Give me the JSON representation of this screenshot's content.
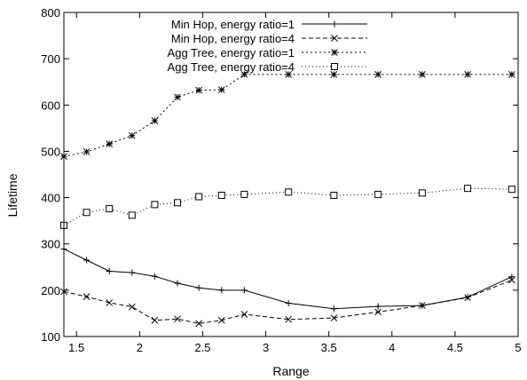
{
  "chart_data": {
    "type": "line",
    "title": "",
    "xlabel": "Range",
    "ylabel": "Lifetime",
    "xlim": [
      1.4,
      5.0
    ],
    "ylim": [
      100,
      800
    ],
    "xticks": [
      1.5,
      2,
      2.5,
      3,
      3.5,
      4,
      4.5,
      5
    ],
    "xtick_labels": [
      "1.5",
      "2",
      "2.5",
      "3",
      "3.5",
      "4",
      "4.5",
      "5"
    ],
    "yticks": [
      100,
      200,
      300,
      400,
      500,
      600,
      700,
      800
    ],
    "ytick_labels": [
      "100",
      "200",
      "300",
      "400",
      "500",
      "600",
      "700",
      "800"
    ],
    "grid": false,
    "legend_position": "top-right",
    "series": [
      {
        "name": "Min Hop, energy ratio=1",
        "marker": "plus",
        "dash": "",
        "x": [
          1.4,
          1.58,
          1.76,
          1.94,
          2.12,
          2.3,
          2.47,
          2.65,
          2.83,
          3.18,
          3.54,
          3.89,
          4.24,
          4.6,
          4.95
        ],
        "y": [
          289,
          265,
          241,
          238,
          230,
          215,
          205,
          200,
          200,
          172,
          160,
          165,
          167,
          185,
          229
        ]
      },
      {
        "name": "Agg Tree, energy ratio=4",
        "marker": "square",
        "dash": "1,3",
        "x": [
          1.4,
          1.58,
          1.76,
          1.94,
          2.12,
          2.3,
          2.47,
          2.65,
          2.83,
          3.18,
          3.54,
          3.89,
          4.24,
          4.6,
          4.95
        ],
        "y": [
          340,
          368,
          376,
          362,
          385,
          389,
          402,
          405,
          407,
          412,
          405,
          407,
          410,
          420,
          418
        ]
      },
      {
        "name": "Min Hop, energy ratio=4",
        "marker": "cross",
        "dash": "5,3",
        "x": [
          1.4,
          1.58,
          1.76,
          1.94,
          2.12,
          2.3,
          2.47,
          2.65,
          2.83,
          3.18,
          3.54,
          3.89,
          4.24,
          4.6,
          4.95
        ],
        "y": [
          197,
          186,
          173,
          164,
          135,
          138,
          128,
          135,
          148,
          137,
          140,
          153,
          167,
          184,
          222
        ]
      },
      {
        "name": "Agg Tree, energy ratio=1",
        "marker": "asterisk",
        "dash": "2,3",
        "x": [
          1.4,
          1.58,
          1.76,
          1.94,
          2.12,
          2.3,
          2.47,
          2.65,
          2.83,
          3.18,
          3.54,
          3.89,
          4.24,
          4.6,
          4.95
        ],
        "y": [
          489,
          499,
          516,
          534,
          566,
          617,
          632,
          633,
          666,
          666,
          666,
          666,
          666,
          666,
          666
        ]
      }
    ],
    "legend_order": [
      "Min Hop, energy ratio=1",
      "Min Hop, energy ratio=4",
      "Agg Tree, energy ratio=1",
      "Agg Tree, energy ratio=4"
    ]
  }
}
